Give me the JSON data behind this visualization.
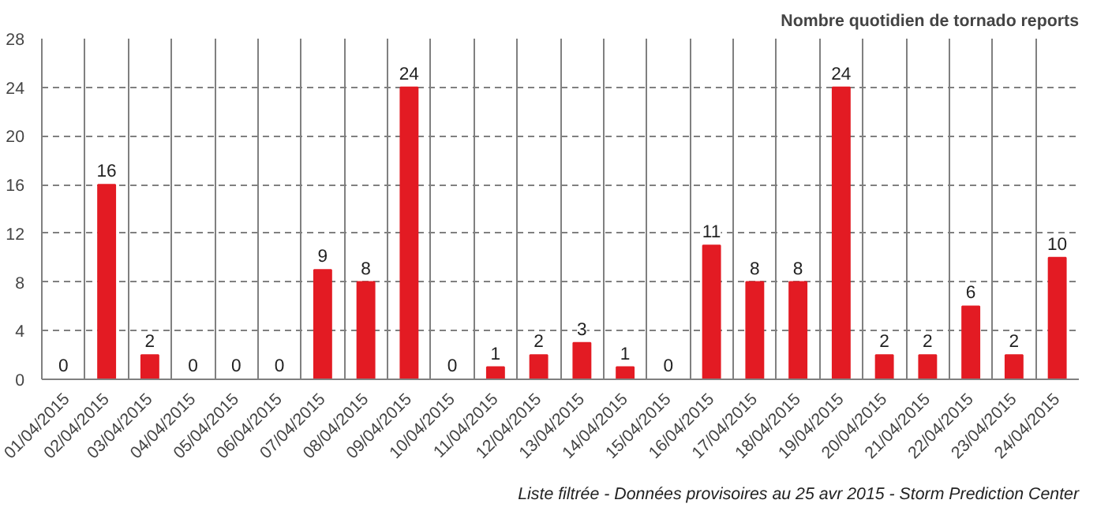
{
  "chart_data": {
    "type": "bar",
    "title": "Nombre quotidien de tornado reports",
    "categories": [
      "01/04/2015",
      "02/04/2015",
      "03/04/2015",
      "04/04/2015",
      "05/04/2015",
      "06/04/2015",
      "07/04/2015",
      "08/04/2015",
      "09/04/2015",
      "10/04/2015",
      "11/04/2015",
      "12/04/2015",
      "13/04/2015",
      "14/04/2015",
      "15/04/2015",
      "16/04/2015",
      "17/04/2015",
      "18/04/2015",
      "19/04/2015",
      "20/04/2015",
      "21/04/2015",
      "22/04/2015",
      "23/04/2015",
      "24/04/2015"
    ],
    "values": [
      0,
      16,
      2,
      0,
      0,
      0,
      9,
      8,
      24,
      0,
      1,
      2,
      3,
      1,
      0,
      11,
      8,
      8,
      24,
      2,
      2,
      6,
      2,
      10
    ],
    "color": "#e31b23",
    "ylim": [
      0,
      28
    ],
    "yticks": [
      0,
      4,
      8,
      12,
      16,
      20,
      24,
      28
    ],
    "grid": true,
    "data_labels": true,
    "annotations": [
      "Liste filtrée - Données provisoires au 25 avr 2015 - Storm Prediction Center"
    ]
  }
}
